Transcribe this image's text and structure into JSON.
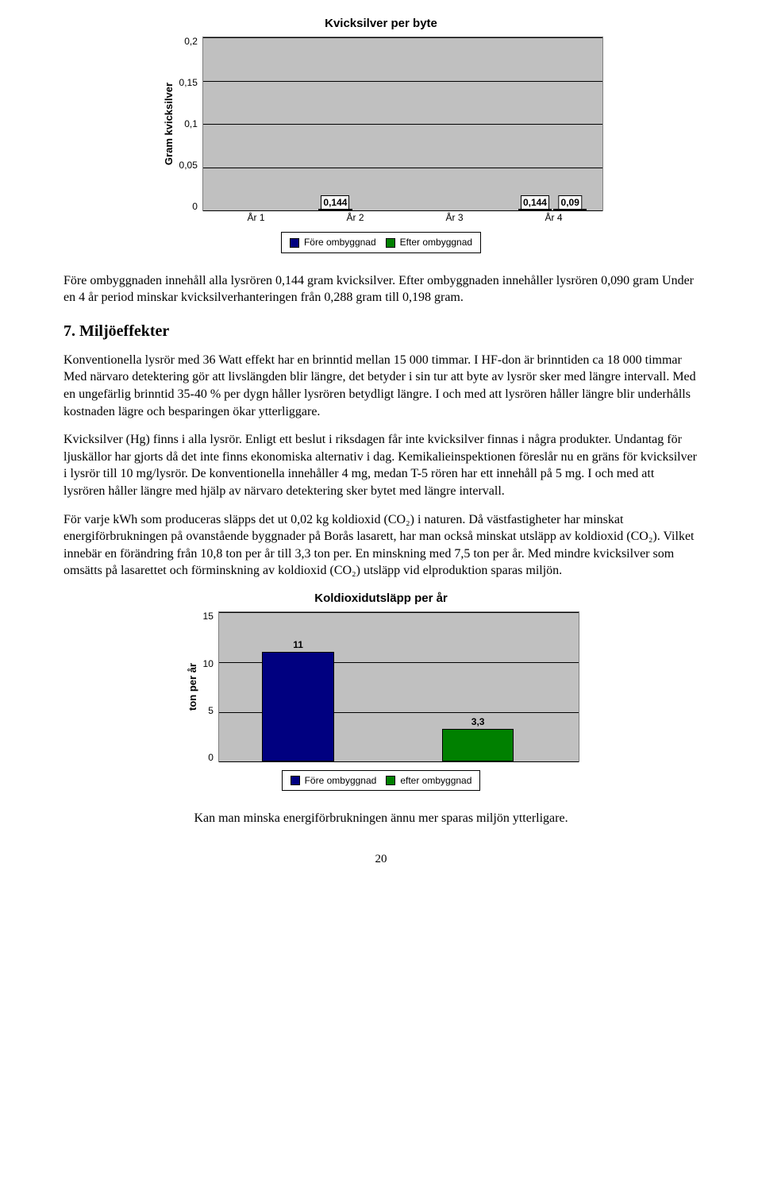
{
  "chart1": {
    "title": "Kvicksilver per byte",
    "ylabel": "Gram kvicksilver",
    "ymax": 0.2,
    "yticks": [
      "0,2",
      "0,15",
      "0,1",
      "0,05",
      "0"
    ],
    "categories": [
      "År 1",
      "År 2",
      "År 3",
      "År 4"
    ],
    "series1_name": "Före ombyggnad",
    "series2_name": "Efter ombyggnad",
    "series1_color": "#000080",
    "series2_color": "#008000",
    "background": "#c0c0c0",
    "bars": [
      {
        "v1": null,
        "v2": null,
        "l1": null,
        "l2": null
      },
      {
        "v1": 0.144,
        "v2": null,
        "l1": "0,144",
        "l2": null
      },
      {
        "v1": null,
        "v2": null,
        "l1": null,
        "l2": null
      },
      {
        "v1": 0.144,
        "v2": 0.09,
        "l1": "0,144",
        "l2": "0,09"
      }
    ]
  },
  "intro_para": "Före ombyggnaden innehåll alla lysrören 0,144 gram kvicksilver. Efter ombyggnaden innehåller lysrören 0,090 gram Under en 4 år period minskar kvicksilverhanteringen från 0,288 gram till 0,198 gram.",
  "section_heading": "7. Miljöeffekter",
  "para1": "Konventionella lysrör med 36 Watt effekt har en brinntid mellan 15 000 timmar. I HF-don är brinntiden ca 18 000 timmar Med närvaro detektering gör att livslängden blir längre, det betyder i sin tur att byte av lysrör sker med längre intervall. Med en ungefärlig brinntid 35-40 % per dygn håller lysrören betydligt längre. I och med att lysrören håller längre blir underhålls kostnaden lägre och besparingen ökar ytterliggare.",
  "para2": "Kvicksilver (Hg) finns i alla lysrör. Enligt ett beslut i riksdagen får inte kvicksilver finnas i några produkter. Undantag för ljuskällor har gjorts då det inte finns ekonomiska alternativ i dag. Kemikalieinspektionen föreslår nu en gräns för kvicksilver i lysrör till 10 mg/lysrör. De konventionella innehåller 4 mg, medan T-5 rören har ett innehåll på 5 mg. I och med att lysrören håller längre med hjälp av närvaro detektering sker bytet med längre intervall.",
  "para3": "För varje kWh som produceras släpps det ut 0,02 kg koldioxid (CO₂) i naturen. Då västfastigheter har minskat energiförbrukningen på ovanstående byggnader på Borås lasarett, har man också minskat utsläpp av koldioxid (CO₂). Vilket innebär en förändring från 10,8 ton per år till 3,3 ton per. En minskning med 7,5 ton per år. Med mindre kvicksilver som omsätts på lasarettet och förminskning av koldioxid (CO₂) utsläpp vid elproduktion sparas miljön.",
  "chart2": {
    "title": "Koldioxidutsläpp per år",
    "ylabel": "ton per år",
    "ymax": 15,
    "yticks": [
      "15",
      "10",
      "5",
      "0"
    ],
    "series1_name": "Före ombyggnad",
    "series2_name": "efter ombyggnad",
    "series1_color": "#000080",
    "series2_color": "#008000",
    "background": "#c0c0c0",
    "bar1": {
      "value": 11,
      "label": "11"
    },
    "bar2": {
      "value": 3.3,
      "label": "3,3"
    }
  },
  "closing": "Kan man minska energiförbrukningen ännu mer sparas miljön ytterligare.",
  "page_number": "20"
}
